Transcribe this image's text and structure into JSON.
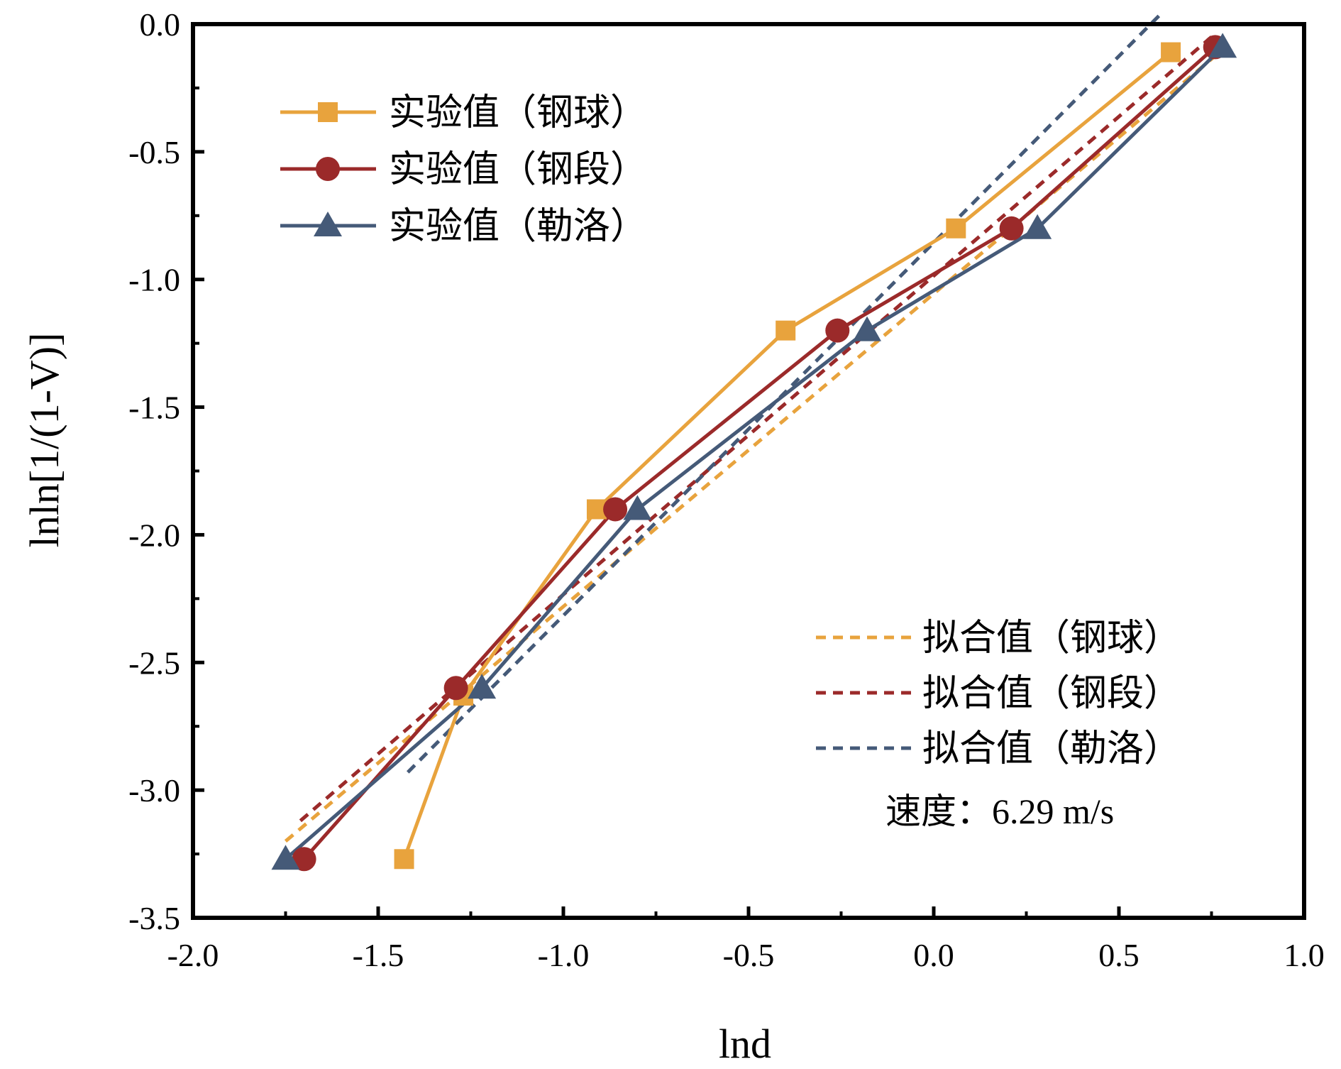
{
  "chart_data": {
    "type": "line",
    "xlabel": "lnd",
    "ylabel": "lnln[1/(1-V)]",
    "xlim": [
      -2.0,
      1.0
    ],
    "ylim": [
      -3.5,
      0.0
    ],
    "x_ticks": [
      "-2.0",
      "-1.5",
      "-1.0",
      "-0.5",
      "0.0",
      "0.5",
      "1.0"
    ],
    "y_ticks": [
      "0.0",
      "-0.5",
      "-1.0",
      "-1.5",
      "-2.0",
      "-2.5",
      "-3.0",
      "-3.5"
    ],
    "grid": false,
    "legend_position": "top-left and bottom-right",
    "annotation": "速度：6.29 m/s",
    "series": [
      {
        "name": "实验值（钢球）",
        "style": "solid",
        "marker": "square",
        "color": "#E8A33D",
        "x": [
          -1.43,
          -1.27,
          -0.91,
          -0.4,
          0.06,
          0.64
        ],
        "y": [
          -3.27,
          -2.63,
          -1.9,
          -1.2,
          -0.8,
          -0.11
        ]
      },
      {
        "name": "实验值（钢段）",
        "style": "solid",
        "marker": "circle",
        "color": "#9B2A2A",
        "x": [
          -1.7,
          -1.29,
          -0.86,
          -0.26,
          0.21,
          0.76
        ],
        "y": [
          -3.27,
          -2.6,
          -1.9,
          -1.2,
          -0.8,
          -0.09
        ]
      },
      {
        "name": "实验值（勒洛）",
        "style": "solid",
        "marker": "triangle",
        "color": "#455A78",
        "x": [
          -1.75,
          -1.22,
          -0.8,
          -0.18,
          0.28,
          0.78
        ],
        "y": [
          -3.27,
          -2.6,
          -1.9,
          -1.2,
          -0.8,
          -0.09
        ]
      },
      {
        "name": "拟合值（钢球）",
        "style": "dashed",
        "color": "#E8A33D",
        "x": [
          -1.75,
          0.78
        ],
        "y": [
          -3.2,
          -0.1
        ]
      },
      {
        "name": "拟合值（钢段）",
        "style": "dashed",
        "color": "#9B2A2A",
        "x": [
          -1.71,
          0.75
        ],
        "y": [
          -3.12,
          -0.05
        ]
      },
      {
        "name": "拟合值（勒洛）",
        "style": "dashed",
        "color": "#455A78",
        "x": [
          -1.42,
          0.62
        ],
        "y": [
          -2.93,
          0.05
        ]
      }
    ]
  }
}
